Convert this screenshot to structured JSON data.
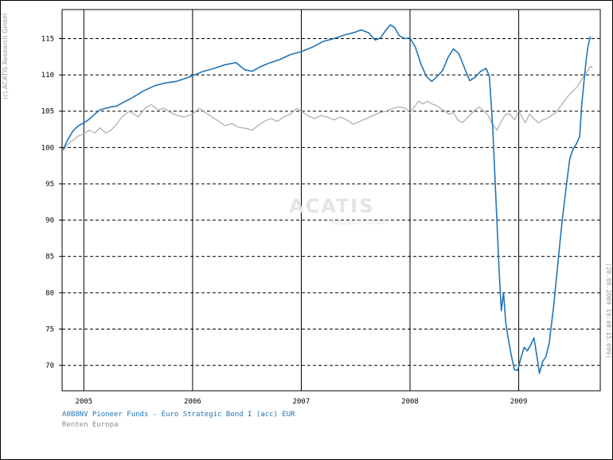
{
  "copyright": "(c) ACATIS Research GmbH",
  "timestamp": "(28.08.2009 19:40:15:099)",
  "watermark": {
    "logo": "ACATIS",
    "sub": "Research GmbH"
  },
  "colors": {
    "fund": "#1f74b8",
    "benchmark": "#aaaaaa",
    "grid": "#000000"
  },
  "chart_data": {
    "type": "line",
    "x_axis": {
      "ticks": [
        "2005",
        "2006",
        "2007",
        "2008",
        "2009"
      ],
      "range": [
        2004.8,
        2009.75
      ]
    },
    "y_axis": {
      "ticks": [
        "70",
        "75",
        "80",
        "85",
        "90",
        "95",
        "100",
        "105",
        "110",
        "115"
      ],
      "range": [
        66.5,
        119
      ]
    },
    "grid": {
      "vertical": "solid",
      "horizontal": "dashed"
    },
    "legend_placement": "bottom-left",
    "series": [
      {
        "name": "A0B8NV Pioneer Funds - Euro Strategic Bond I (acc) EUR",
        "color": "#1f74b8",
        "points": [
          [
            2004.81,
            99.7
          ],
          [
            2004.85,
            101.0
          ],
          [
            2004.9,
            102.3
          ],
          [
            2004.95,
            103.0
          ],
          [
            2005.0,
            103.4
          ],
          [
            2005.05,
            103.9
          ],
          [
            2005.1,
            104.6
          ],
          [
            2005.15,
            105.2
          ],
          [
            2005.2,
            105.4
          ],
          [
            2005.25,
            105.6
          ],
          [
            2005.3,
            105.7
          ],
          [
            2005.35,
            106.1
          ],
          [
            2005.45,
            106.9
          ],
          [
            2005.55,
            107.8
          ],
          [
            2005.65,
            108.5
          ],
          [
            2005.75,
            108.9
          ],
          [
            2005.85,
            109.1
          ],
          [
            2005.95,
            109.6
          ],
          [
            2006.0,
            109.9
          ],
          [
            2006.1,
            110.5
          ],
          [
            2006.2,
            110.9
          ],
          [
            2006.3,
            111.4
          ],
          [
            2006.4,
            111.7
          ],
          [
            2006.48,
            110.7
          ],
          [
            2006.55,
            110.5
          ],
          [
            2006.62,
            111.1
          ],
          [
            2006.7,
            111.6
          ],
          [
            2006.8,
            112.1
          ],
          [
            2006.9,
            112.8
          ],
          [
            2007.0,
            113.2
          ],
          [
            2007.1,
            113.8
          ],
          [
            2007.2,
            114.6
          ],
          [
            2007.3,
            115.0
          ],
          [
            2007.4,
            115.5
          ],
          [
            2007.5,
            115.9
          ],
          [
            2007.55,
            116.2
          ],
          [
            2007.62,
            115.8
          ],
          [
            2007.68,
            114.8
          ],
          [
            2007.73,
            115.1
          ],
          [
            2007.78,
            116.2
          ],
          [
            2007.82,
            116.9
          ],
          [
            2007.86,
            116.5
          ],
          [
            2007.9,
            115.4
          ],
          [
            2007.95,
            115.0
          ],
          [
            2008.0,
            115.1
          ],
          [
            2008.05,
            113.8
          ],
          [
            2008.1,
            111.5
          ],
          [
            2008.15,
            109.8
          ],
          [
            2008.2,
            109.1
          ],
          [
            2008.25,
            109.8
          ],
          [
            2008.3,
            110.6
          ],
          [
            2008.35,
            112.4
          ],
          [
            2008.4,
            113.6
          ],
          [
            2008.45,
            112.9
          ],
          [
            2008.5,
            111.0
          ],
          [
            2008.55,
            109.2
          ],
          [
            2008.6,
            109.7
          ],
          [
            2008.65,
            110.5
          ],
          [
            2008.7,
            110.9
          ],
          [
            2008.73,
            109.8
          ],
          [
            2008.76,
            103.0
          ],
          [
            2008.79,
            93.0
          ],
          [
            2008.82,
            83.0
          ],
          [
            2008.84,
            77.5
          ],
          [
            2008.86,
            80.0
          ],
          [
            2008.88,
            76.0
          ],
          [
            2008.9,
            74.0
          ],
          [
            2008.93,
            71.5
          ],
          [
            2008.96,
            69.4
          ],
          [
            2008.99,
            69.3
          ],
          [
            2009.02,
            71.0
          ],
          [
            2009.05,
            72.5
          ],
          [
            2009.08,
            72.0
          ],
          [
            2009.11,
            72.8
          ],
          [
            2009.14,
            73.8
          ],
          [
            2009.17,
            71.0
          ],
          [
            2009.19,
            68.9
          ],
          [
            2009.22,
            70.5
          ],
          [
            2009.25,
            71.2
          ],
          [
            2009.28,
            73.0
          ],
          [
            2009.32,
            78.0
          ],
          [
            2009.36,
            84.0
          ],
          [
            2009.4,
            90.0
          ],
          [
            2009.44,
            95.0
          ],
          [
            2009.47,
            98.5
          ],
          [
            2009.5,
            99.8
          ],
          [
            2009.53,
            100.5
          ],
          [
            2009.56,
            101.5
          ],
          [
            2009.58,
            106.0
          ],
          [
            2009.6,
            109.0
          ],
          [
            2009.62,
            112.0
          ],
          [
            2009.64,
            114.2
          ],
          [
            2009.66,
            115.3
          ]
        ]
      },
      {
        "name": "Renten Europa",
        "color": "#aaaaaa",
        "points": [
          [
            2004.81,
            99.6
          ],
          [
            2004.85,
            100.4
          ],
          [
            2004.9,
            101.0
          ],
          [
            2004.95,
            101.6
          ],
          [
            2005.0,
            101.9
          ],
          [
            2005.05,
            102.4
          ],
          [
            2005.1,
            102.0
          ],
          [
            2005.15,
            102.7
          ],
          [
            2005.2,
            102.0
          ],
          [
            2005.25,
            102.4
          ],
          [
            2005.3,
            103.2
          ],
          [
            2005.35,
            104.2
          ],
          [
            2005.42,
            105.0
          ],
          [
            2005.5,
            104.2
          ],
          [
            2005.56,
            105.4
          ],
          [
            2005.62,
            105.9
          ],
          [
            2005.68,
            105.2
          ],
          [
            2005.74,
            105.4
          ],
          [
            2005.8,
            104.8
          ],
          [
            2005.86,
            104.4
          ],
          [
            2005.92,
            104.2
          ],
          [
            2006.0,
            104.6
          ],
          [
            2006.06,
            105.4
          ],
          [
            2006.12,
            104.8
          ],
          [
            2006.18,
            104.2
          ],
          [
            2006.24,
            103.6
          ],
          [
            2006.3,
            103.0
          ],
          [
            2006.36,
            103.3
          ],
          [
            2006.42,
            102.8
          ],
          [
            2006.5,
            102.6
          ],
          [
            2006.55,
            102.4
          ],
          [
            2006.6,
            103.0
          ],
          [
            2006.66,
            103.6
          ],
          [
            2006.72,
            104.0
          ],
          [
            2006.78,
            103.6
          ],
          [
            2006.84,
            104.2
          ],
          [
            2006.9,
            104.6
          ],
          [
            2006.96,
            105.4
          ],
          [
            2007.0,
            105.0
          ],
          [
            2007.06,
            104.4
          ],
          [
            2007.12,
            104.0
          ],
          [
            2007.18,
            104.4
          ],
          [
            2007.24,
            104.2
          ],
          [
            2007.3,
            103.8
          ],
          [
            2007.36,
            104.2
          ],
          [
            2007.42,
            103.8
          ],
          [
            2007.48,
            103.2
          ],
          [
            2007.54,
            103.6
          ],
          [
            2007.6,
            104.0
          ],
          [
            2007.66,
            104.4
          ],
          [
            2007.72,
            104.8
          ],
          [
            2007.78,
            105.0
          ],
          [
            2007.84,
            105.4
          ],
          [
            2007.9,
            105.6
          ],
          [
            2007.96,
            105.4
          ],
          [
            2008.0,
            104.8
          ],
          [
            2008.04,
            105.6
          ],
          [
            2008.08,
            106.4
          ],
          [
            2008.12,
            106.0
          ],
          [
            2008.16,
            106.4
          ],
          [
            2008.2,
            106.0
          ],
          [
            2008.24,
            105.8
          ],
          [
            2008.28,
            105.4
          ],
          [
            2008.32,
            105.0
          ],
          [
            2008.36,
            104.6
          ],
          [
            2008.4,
            104.8
          ],
          [
            2008.44,
            103.8
          ],
          [
            2008.48,
            103.4
          ],
          [
            2008.52,
            104.0
          ],
          [
            2008.56,
            104.6
          ],
          [
            2008.6,
            105.2
          ],
          [
            2008.64,
            105.6
          ],
          [
            2008.68,
            105.0
          ],
          [
            2008.72,
            104.4
          ],
          [
            2008.76,
            103.2
          ],
          [
            2008.8,
            102.4
          ],
          [
            2008.84,
            103.6
          ],
          [
            2008.88,
            104.6
          ],
          [
            2008.92,
            104.6
          ],
          [
            2008.96,
            103.8
          ],
          [
            2009.0,
            105.0
          ],
          [
            2009.03,
            104.2
          ],
          [
            2009.06,
            103.4
          ],
          [
            2009.1,
            104.6
          ],
          [
            2009.14,
            104.0
          ],
          [
            2009.18,
            103.4
          ],
          [
            2009.22,
            103.8
          ],
          [
            2009.26,
            104.0
          ],
          [
            2009.3,
            104.4
          ],
          [
            2009.34,
            104.8
          ],
          [
            2009.38,
            105.6
          ],
          [
            2009.42,
            106.4
          ],
          [
            2009.46,
            107.2
          ],
          [
            2009.5,
            107.8
          ],
          [
            2009.54,
            108.4
          ],
          [
            2009.58,
            109.4
          ],
          [
            2009.62,
            110.2
          ],
          [
            2009.66,
            111.2
          ],
          [
            2009.68,
            111.0
          ]
        ]
      }
    ]
  }
}
